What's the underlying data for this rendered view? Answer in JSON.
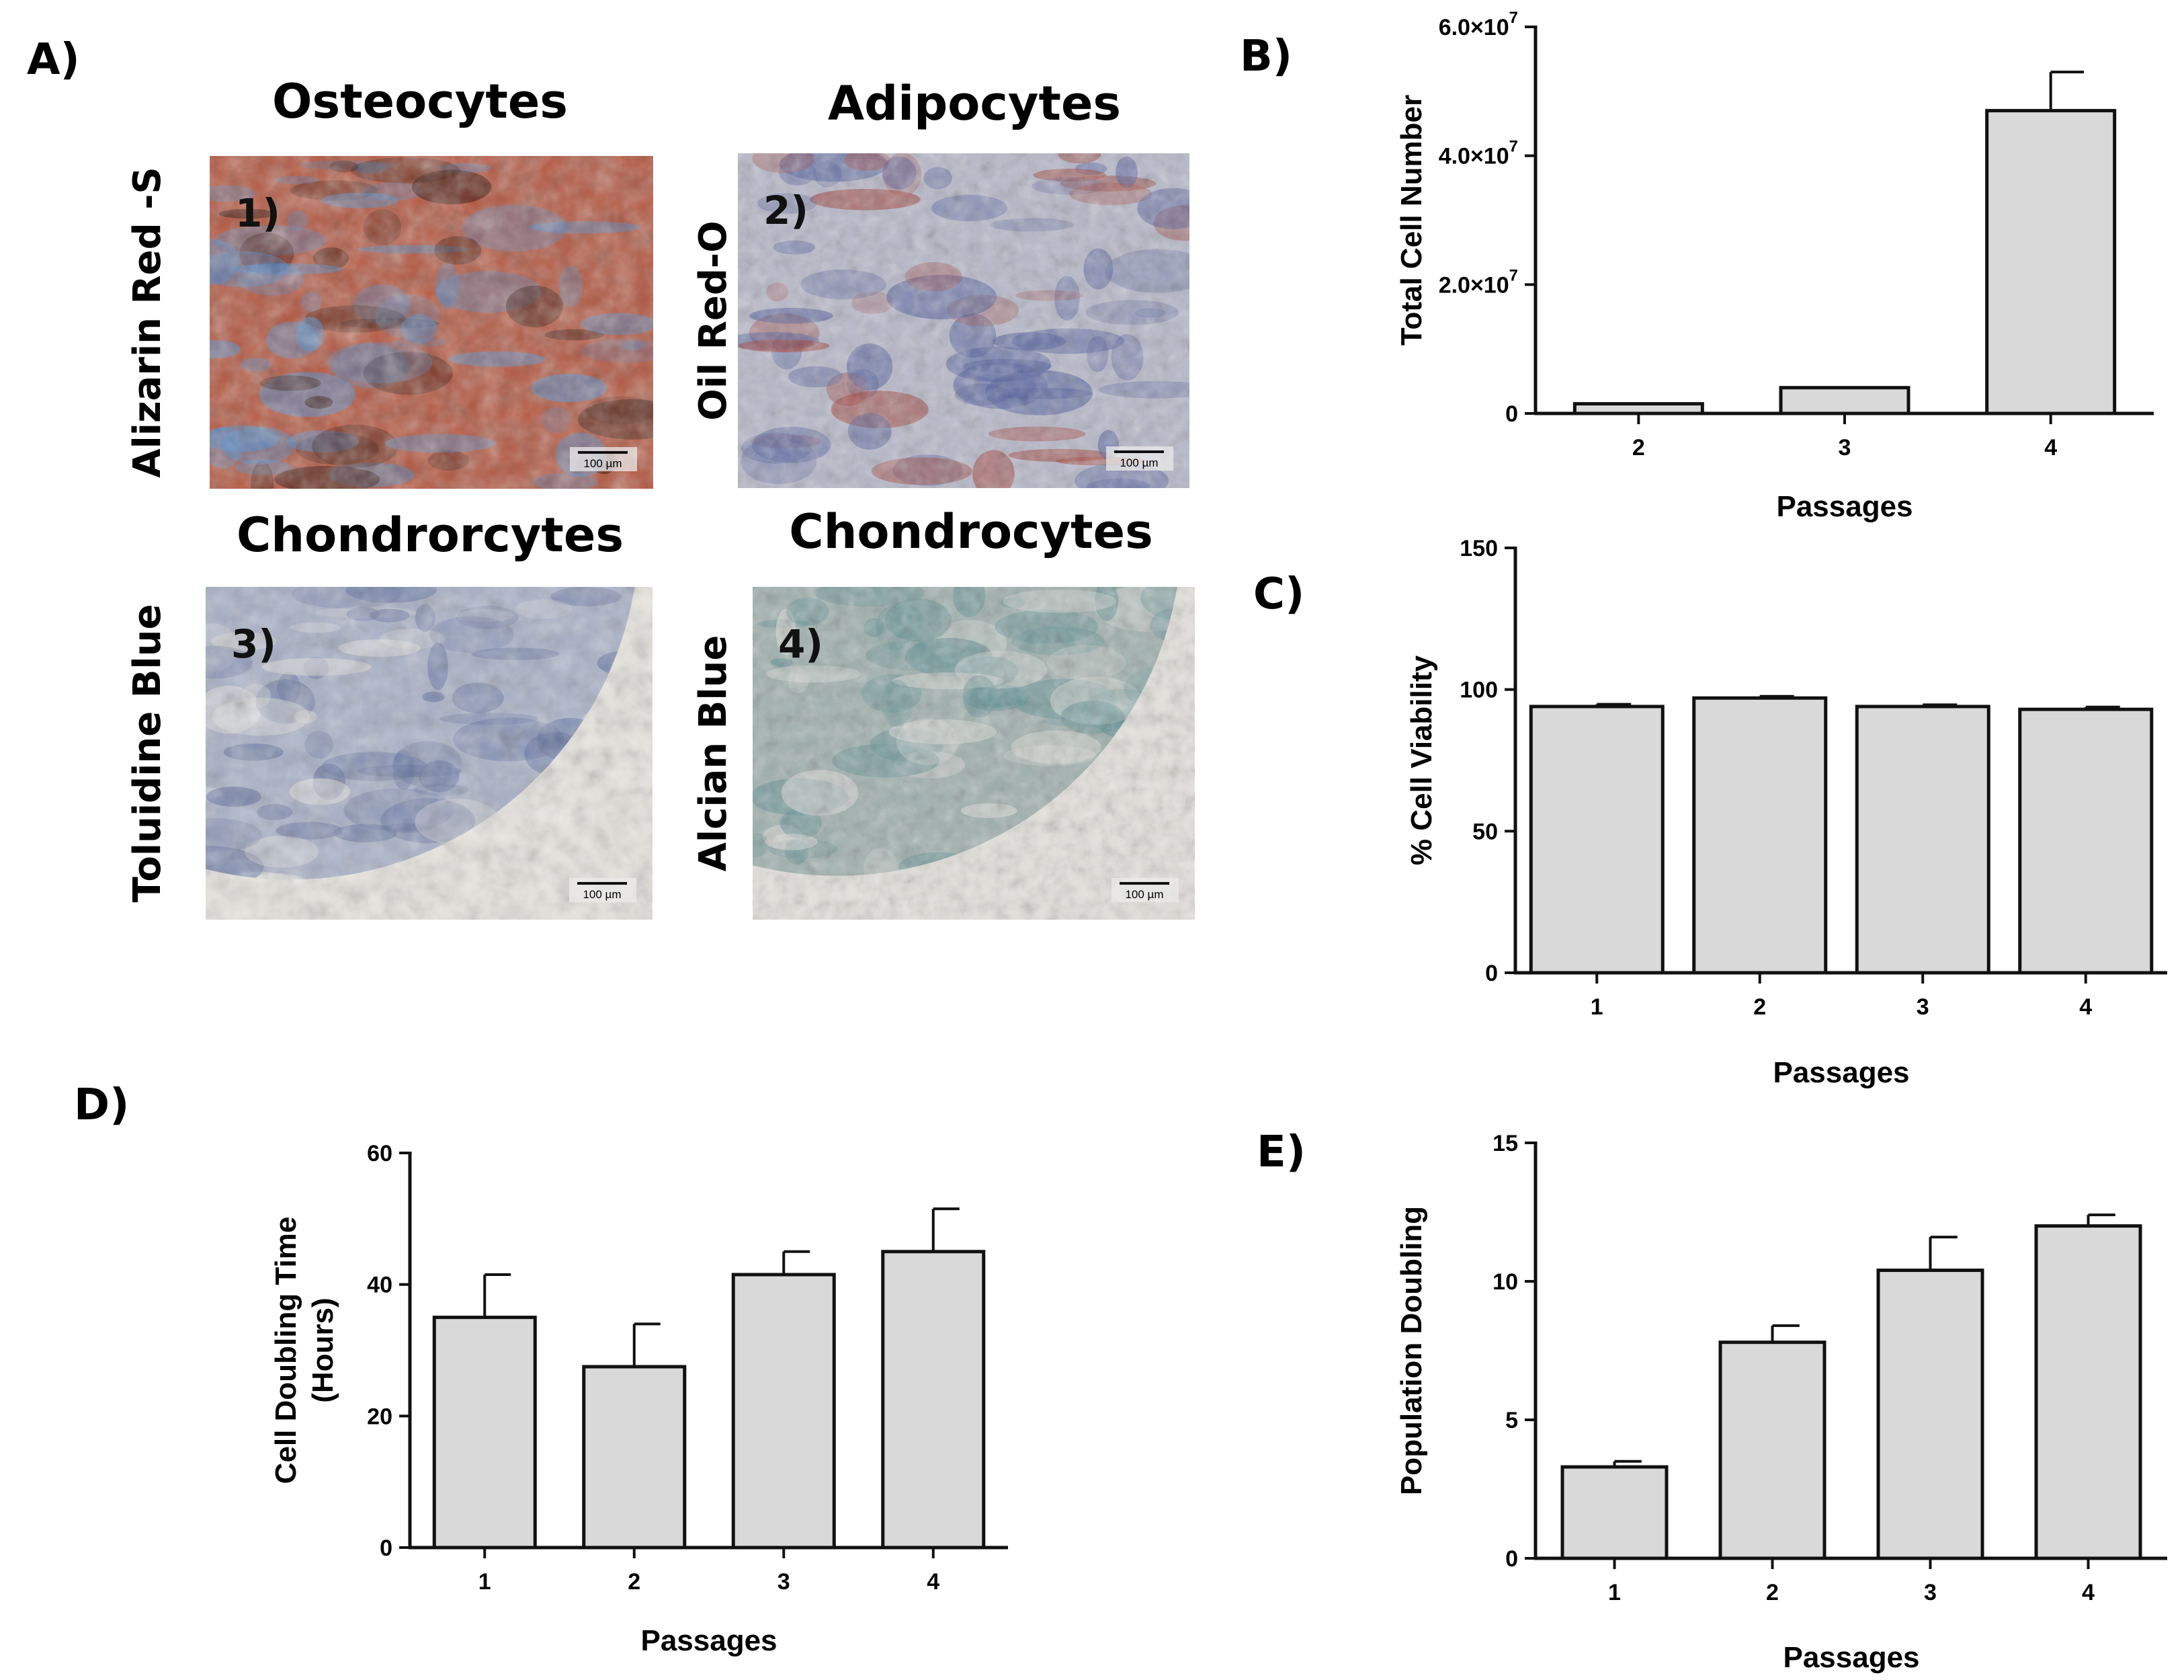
{
  "panel_labels": {
    "a": "A)",
    "b": "B)",
    "c": "C)",
    "d": "D)",
    "e": "E)"
  },
  "micrographs": [
    {
      "title": "Osteocytes",
      "stain": "Alizarin Red -S",
      "number": "1)",
      "scale": "100 µm",
      "colors": [
        "#b4563f",
        "#4c8ccf",
        "#3a1a12"
      ]
    },
    {
      "title": "Adipocytes",
      "stain": "Oil Red-O",
      "number": "2)",
      "scale": "100 µm",
      "colors": [
        "#b7b8c9",
        "#4e5c9c",
        "#a3433a"
      ]
    },
    {
      "title": "Chondrorcytes",
      "stain": "Toluidine Blue",
      "number": "3)",
      "scale": "100 µm",
      "colors": [
        "#a8b1c8",
        "#5b6b9c",
        "#e9e6e0"
      ]
    },
    {
      "title": "Chondrocytes",
      "stain": "Alcian  Blue",
      "number": "4)",
      "scale": "100 µm",
      "colors": [
        "#9fb0ad",
        "#5f8f94",
        "#e5e2dd"
      ]
    }
  ],
  "chart_data": [
    {
      "id": "B",
      "type": "bar",
      "title": "",
      "xlabel": "Passages",
      "ylabel": "Total Cell Number",
      "categories": [
        "2",
        "3",
        "4"
      ],
      "values": [
        1500000,
        4000000,
        47000000
      ],
      "errors": [
        0,
        0,
        6000000
      ],
      "ylim": [
        0,
        60000000
      ],
      "yticks": [
        "0",
        "2.0×10^7",
        "4.0×10^7",
        "6.0×10^7"
      ],
      "bar_color": "#d9d9d9",
      "grid": false
    },
    {
      "id": "C",
      "type": "bar",
      "title": "",
      "xlabel": "Passages",
      "ylabel": "% Cell Viability",
      "categories": [
        "1",
        "2",
        "3",
        "4"
      ],
      "values": [
        94,
        97,
        94,
        93
      ],
      "errors": [
        0.8,
        0.6,
        0.6,
        0.8
      ],
      "ylim": [
        0,
        150
      ],
      "yticks": [
        "0",
        "50",
        "100",
        "150"
      ],
      "bar_color": "#d9d9d9",
      "grid": false
    },
    {
      "id": "D",
      "type": "bar",
      "title": "",
      "xlabel": "Passages",
      "ylabel": "Cell Doubling Time (Hours)",
      "categories": [
        "1",
        "2",
        "3",
        "4"
      ],
      "values": [
        35,
        27.5,
        41.5,
        45
      ],
      "errors": [
        6.5,
        6.5,
        3.5,
        6.5
      ],
      "ylim": [
        0,
        60
      ],
      "yticks": [
        "0",
        "20",
        "40",
        "60"
      ],
      "bar_color": "#d9d9d9",
      "grid": false
    },
    {
      "id": "E",
      "type": "bar",
      "title": "",
      "xlabel": "Passages",
      "ylabel": "Population Doubling",
      "categories": [
        "1",
        "2",
        "3",
        "4"
      ],
      "values": [
        3.3,
        7.8,
        10.4,
        12
      ],
      "errors": [
        0.2,
        0.6,
        1.2,
        0.4
      ],
      "ylim": [
        0,
        15
      ],
      "yticks": [
        "0",
        "5",
        "10",
        "15"
      ],
      "bar_color": "#d9d9d9",
      "grid": false
    }
  ]
}
